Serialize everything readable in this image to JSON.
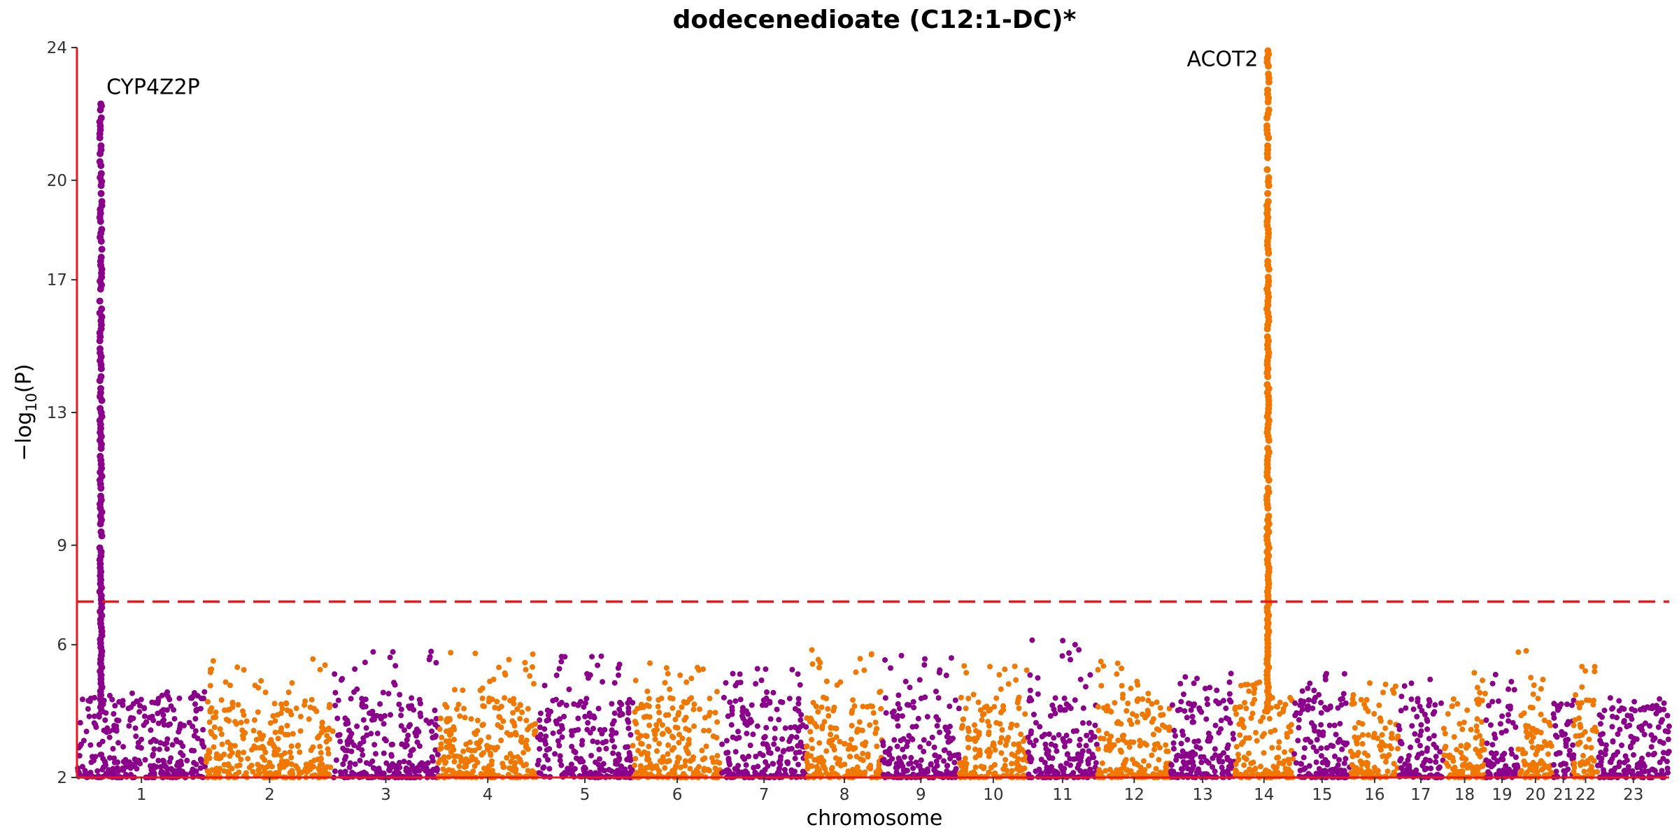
{
  "chart_data": {
    "type": "scatter",
    "title": "dodecenedioate (C12:1-DC)*",
    "xlabel": "chromosome",
    "ylabel": "−log10(P)",
    "ylabel_base": "−log",
    "ylabel_sub": "10",
    "ylabel_arg": "(P)",
    "ylim": [
      2,
      24
    ],
    "yticks": [
      2,
      6,
      9,
      13,
      17,
      20,
      24
    ],
    "significance_line": 7.3,
    "grid": false,
    "legend": "none",
    "colors": {
      "odd": "#8b008b",
      "even": "#f07800",
      "axis": "#e8181d",
      "threshold": "#e8181d"
    },
    "chromosomes": [
      {
        "label": "1",
        "start": 0.0,
        "end": 0.081,
        "peak": 4.6
      },
      {
        "label": "2",
        "start": 0.081,
        "end": 0.161,
        "peak": 5.6
      },
      {
        "label": "3",
        "start": 0.161,
        "end": 0.227,
        "peak": 5.9
      },
      {
        "label": "4",
        "start": 0.227,
        "end": 0.289,
        "peak": 5.8
      },
      {
        "label": "5",
        "start": 0.289,
        "end": 0.349,
        "peak": 5.7
      },
      {
        "label": "6",
        "start": 0.349,
        "end": 0.405,
        "peak": 5.5
      },
      {
        "label": "7",
        "start": 0.405,
        "end": 0.458,
        "peak": 5.3
      },
      {
        "label": "8",
        "start": 0.458,
        "end": 0.506,
        "peak": 5.9
      },
      {
        "label": "9",
        "start": 0.506,
        "end": 0.554,
        "peak": 5.7
      },
      {
        "label": "10",
        "start": 0.554,
        "end": 0.597,
        "peak": 5.4
      },
      {
        "label": "11",
        "start": 0.597,
        "end": 0.641,
        "peak": 6.2
      },
      {
        "label": "12",
        "start": 0.641,
        "end": 0.687,
        "peak": 5.5
      },
      {
        "label": "13",
        "start": 0.687,
        "end": 0.727,
        "peak": 5.3
      },
      {
        "label": "14",
        "start": 0.727,
        "end": 0.764,
        "peak": 4.9
      },
      {
        "label": "15",
        "start": 0.764,
        "end": 0.8,
        "peak": 5.3
      },
      {
        "label": "16",
        "start": 0.8,
        "end": 0.83,
        "peak": 5.0
      },
      {
        "label": "17",
        "start": 0.83,
        "end": 0.858,
        "peak": 5.1
      },
      {
        "label": "18",
        "start": 0.858,
        "end": 0.885,
        "peak": 5.2
      },
      {
        "label": "19",
        "start": 0.885,
        "end": 0.905,
        "peak": 5.1
      },
      {
        "label": "20",
        "start": 0.905,
        "end": 0.927,
        "peak": 5.9
      },
      {
        "label": "21",
        "start": 0.927,
        "end": 0.94,
        "peak": 4.3
      },
      {
        "label": "22",
        "start": 0.94,
        "end": 0.955,
        "peak": 5.4
      },
      {
        "label": "23",
        "start": 0.955,
        "end": 1.0,
        "peak": 4.1
      }
    ],
    "peaks": [
      {
        "gene": "CYP4Z2P",
        "chromosome": "1",
        "max_y": 22.3
      },
      {
        "gene": "ACOT2",
        "chromosome": "14",
        "max_y": 23.9
      }
    ]
  }
}
